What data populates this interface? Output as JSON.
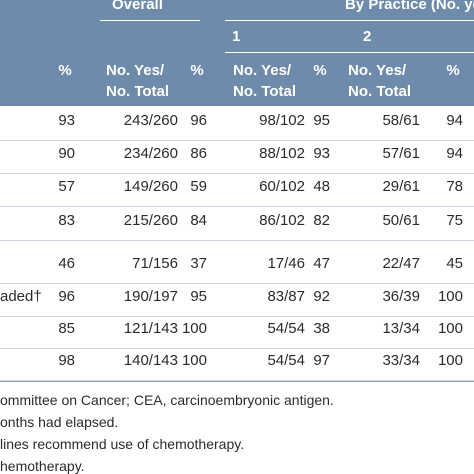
{
  "header": {
    "groups": [
      "Overall",
      "By Practice (No. yes"
    ],
    "practices": [
      "1",
      "2"
    ],
    "columns": [
      "%",
      "No. Yes/ No. Total",
      "%",
      "No. Yes/ No. Total",
      "%",
      "No. Yes/ No. Total",
      "%"
    ]
  },
  "table": {
    "rows": [
      {
        "cells": [
          "93",
          "243/260",
          "96",
          "98/102",
          "95",
          "58/61",
          "94"
        ]
      },
      {
        "cells": [
          "90",
          "234/260",
          "86",
          "88/102",
          "93",
          "57/61",
          "94"
        ]
      },
      {
        "cells": [
          "57",
          "149/260",
          "59",
          "60/102",
          "48",
          "29/61",
          "78"
        ]
      },
      {
        "cells": [
          "83",
          "215/260",
          "84",
          "86/102",
          "82",
          "50/61",
          "75"
        ]
      },
      {
        "cells": [
          "46",
          "71/156",
          "37",
          "17/46",
          "47",
          "22/47",
          "45"
        ]
      },
      {
        "label": "aded†",
        "cells": [
          "96",
          "190/197",
          "95",
          "83/87",
          "92",
          "36/39",
          "100"
        ]
      },
      {
        "cells": [
          "85",
          "121/143",
          "100",
          "54/54",
          "38",
          "13/34",
          "100"
        ]
      },
      {
        "cells": [
          "98",
          "140/143",
          "100",
          "54/54",
          "97",
          "33/34",
          "100"
        ]
      }
    ]
  },
  "footnotes": [
    "ommittee on Cancer; CEA, carcinoembryonic antigen.",
    "onths had elapsed.",
    "lines recommend use of chemotherapy.",
    "hemotherapy."
  ]
}
